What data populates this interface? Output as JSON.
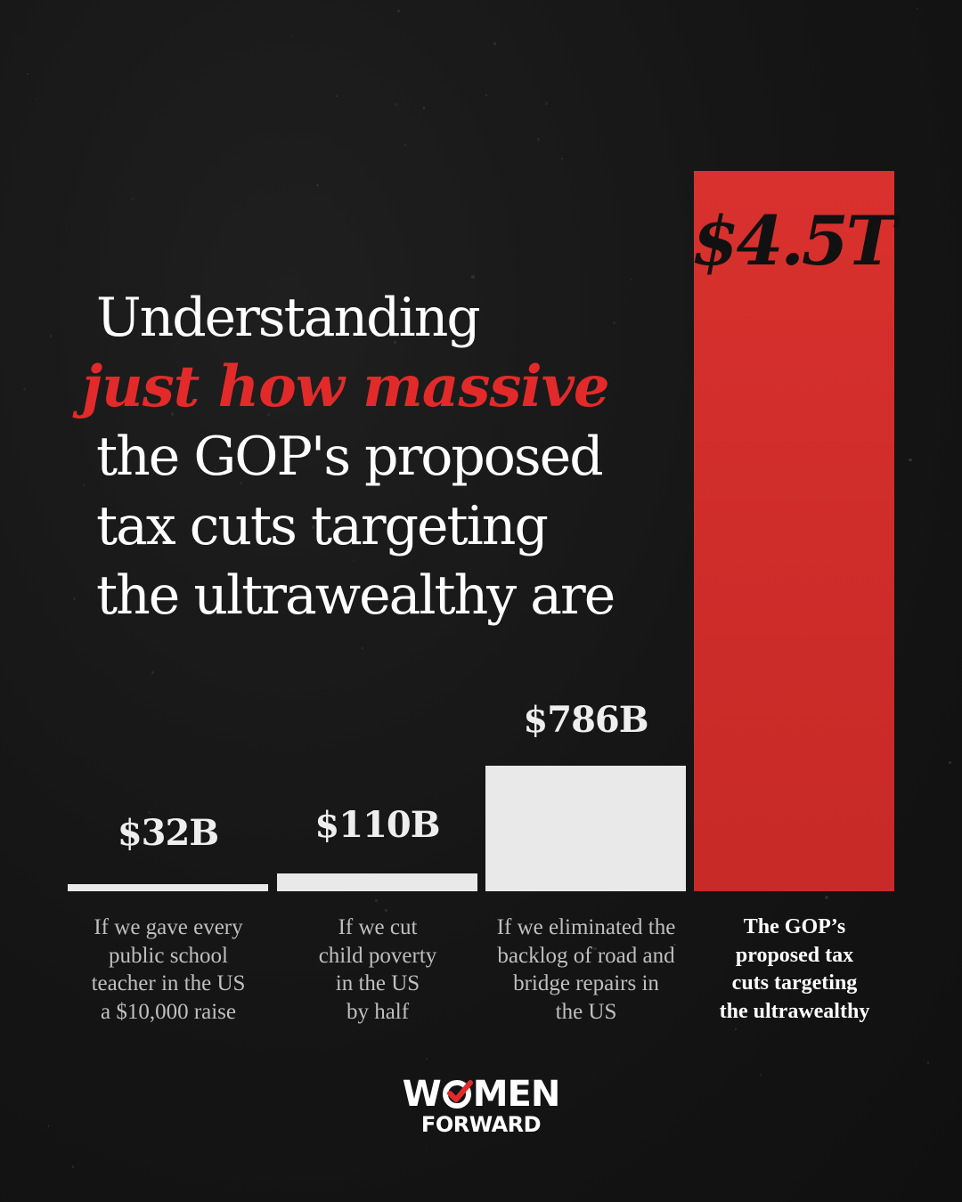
{
  "title": {
    "line1": "Understanding",
    "accent": "just how massive",
    "line3": "the GOP's proposed",
    "line4": "tax cuts targeting",
    "line5": "the ultrawealthy are"
  },
  "chart_data": {
    "type": "bar",
    "title": "Understanding just how massive the GOP's proposed tax cuts targeting the ultrawealthy are",
    "categories": [
      "If we gave every public school teacher in the US a $10,000 raise",
      "If we cut child poverty in the US by half",
      "If we eliminated the backlog of road and bridge repairs in the US",
      "The GOP’s proposed tax cuts targeting the ultrawealthy"
    ],
    "values": [
      32,
      110,
      786,
      4500
    ],
    "units": "billions USD",
    "value_labels": [
      "$32B",
      "$110B",
      "$786B",
      "$4.5T"
    ],
    "bars": [
      {
        "label": "$32B",
        "value": 32,
        "desc": [
          "If we gave every",
          "public school",
          "teacher in the US",
          "a $10,000 raise"
        ],
        "color": "#e9e9e9"
      },
      {
        "label": "$110B",
        "value": 110,
        "desc": [
          "If we cut",
          "child poverty",
          "in the US",
          "by half"
        ],
        "color": "#e9e9e9"
      },
      {
        "label": "$786B",
        "value": 786,
        "desc": [
          "If we eliminated the",
          "backlog of road and",
          "bridge repairs in",
          "the US"
        ],
        "color": "#e9e9e9"
      },
      {
        "label": "$4.5T",
        "value": 4500,
        "desc": [
          "The GOP’s",
          "proposed tax",
          "cuts targeting",
          "the ultrawealthy"
        ],
        "color": "#d32f2c"
      }
    ],
    "grid": false,
    "legend": "none"
  },
  "colors": {
    "background": "#141414",
    "accent": "#e32a2a",
    "bar": "#e9e9e9"
  },
  "logo": {
    "line1_a": "W",
    "line1_b": "MEN",
    "line2": "FORWARD",
    "icon": "check-circle-icon"
  }
}
